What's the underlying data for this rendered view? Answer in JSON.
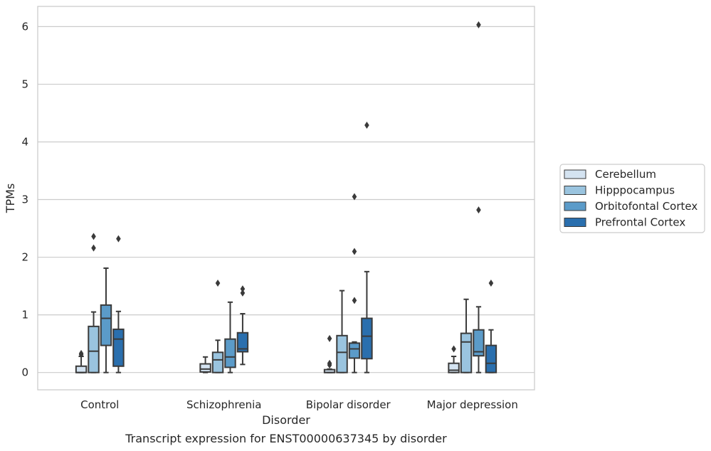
{
  "chart_data": {
    "type": "box",
    "title": "Transcript expression for ENST00000637345 by disorder",
    "xlabel": "Disorder",
    "ylabel": "TPMs",
    "ylim": [
      -0.3,
      6.35
    ],
    "yticks": [
      0,
      1,
      2,
      3,
      4,
      5,
      6
    ],
    "grid": "horizontal",
    "legend": "right",
    "categories": [
      "Control",
      "Schizophrenia",
      "Bipolar disorder",
      "Major depression"
    ],
    "series": [
      {
        "name": "Cerebellum",
        "color": "#d4e3f1",
        "boxes": [
          {
            "whislo": 0,
            "q1": 0,
            "med": 0,
            "q3": 0.11,
            "whishi": 0.28,
            "fliers": [
              0.31,
              0.33
            ]
          },
          {
            "whislo": 0,
            "q1": 0.01,
            "med": 0.06,
            "q3": 0.15,
            "whishi": 0.27,
            "fliers": []
          },
          {
            "whislo": 0,
            "q1": 0,
            "med": 0,
            "q3": 0.05,
            "whishi": 0.06,
            "fliers": [
              0.13,
              0.16,
              0.59
            ]
          },
          {
            "whislo": 0,
            "q1": 0,
            "med": 0.04,
            "q3": 0.16,
            "whishi": 0.28,
            "fliers": [
              0.41
            ]
          }
        ]
      },
      {
        "name": "Hipppocampus",
        "color": "#9ac4df",
        "boxes": [
          {
            "whislo": 0,
            "q1": 0,
            "med": 0.37,
            "q3": 0.8,
            "whishi": 1.05,
            "fliers": [
              2.16,
              2.36
            ]
          },
          {
            "whislo": 0,
            "q1": 0,
            "med": 0.22,
            "q3": 0.35,
            "whishi": 0.56,
            "fliers": [
              1.55
            ]
          },
          {
            "whislo": 0,
            "q1": 0,
            "med": 0.35,
            "q3": 0.64,
            "whishi": 1.42,
            "fliers": []
          },
          {
            "whislo": 0,
            "q1": 0,
            "med": 0.53,
            "q3": 0.68,
            "whishi": 1.27,
            "fliers": []
          }
        ]
      },
      {
        "name": "Orbitofontal Cortex",
        "color": "#5b9bc9",
        "boxes": [
          {
            "whislo": 0,
            "q1": 0.47,
            "med": 0.94,
            "q3": 1.17,
            "whishi": 1.81,
            "fliers": []
          },
          {
            "whislo": 0,
            "q1": 0.09,
            "med": 0.27,
            "q3": 0.58,
            "whishi": 1.22,
            "fliers": []
          },
          {
            "whislo": 0,
            "q1": 0.25,
            "med": 0.41,
            "q3": 0.51,
            "whishi": 0.53,
            "fliers": [
              1.25,
              2.1,
              3.05
            ]
          },
          {
            "whislo": 0,
            "q1": 0.29,
            "med": 0.36,
            "q3": 0.74,
            "whishi": 1.14,
            "fliers": [
              2.82,
              6.03
            ]
          }
        ]
      },
      {
        "name": "Prefrontal Cortex",
        "color": "#2a6fae",
        "boxes": [
          {
            "whislo": 0,
            "q1": 0.11,
            "med": 0.58,
            "q3": 0.75,
            "whishi": 1.06,
            "fliers": [
              2.32
            ]
          },
          {
            "whislo": 0.14,
            "q1": 0.36,
            "med": 0.41,
            "q3": 0.69,
            "whishi": 1.02,
            "fliers": [
              1.38,
              1.45
            ]
          },
          {
            "whislo": 0,
            "q1": 0.24,
            "med": 0.63,
            "q3": 0.94,
            "whishi": 1.75,
            "fliers": [
              4.29
            ]
          },
          {
            "whislo": 0,
            "q1": 0,
            "med": 0.16,
            "q3": 0.47,
            "whishi": 0.74,
            "fliers": [
              1.55
            ]
          }
        ]
      }
    ]
  }
}
